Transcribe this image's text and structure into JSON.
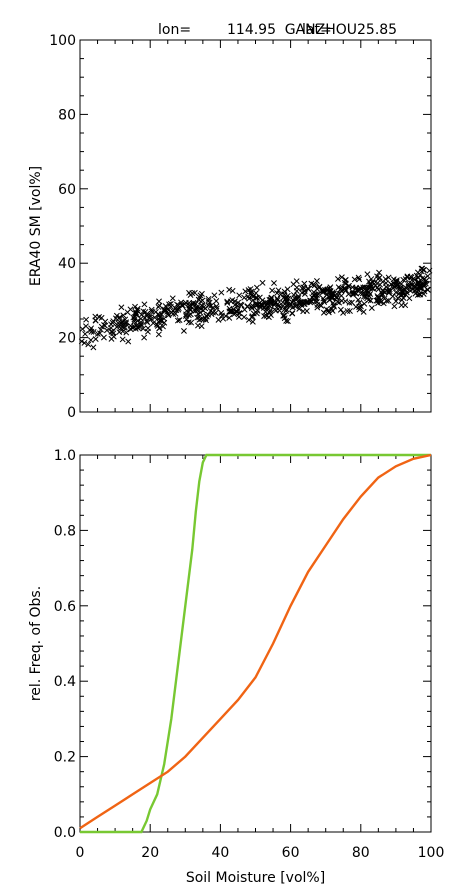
{
  "header": {
    "station": "GANZHOU",
    "lon_label": "lon=",
    "lon_value": "114.95",
    "lat_label": "lat=",
    "lat_value": "25.85"
  },
  "chart_data": [
    {
      "type": "scatter",
      "title": "",
      "xlabel": "",
      "ylabel": "ERA40 SM [vol%]",
      "xlim": [
        0,
        100
      ],
      "ylim": [
        0,
        100
      ],
      "yticks": [
        "0",
        "20",
        "40",
        "60",
        "80",
        "100"
      ],
      "marker": "x",
      "marker_color": "#000000",
      "trend_points": [
        {
          "x": 0,
          "y": 21
        },
        {
          "x": 10,
          "y": 23
        },
        {
          "x": 20,
          "y": 25
        },
        {
          "x": 30,
          "y": 27
        },
        {
          "x": 40,
          "y": 28
        },
        {
          "x": 50,
          "y": 29
        },
        {
          "x": 60,
          "y": 30
        },
        {
          "x": 70,
          "y": 31
        },
        {
          "x": 80,
          "y": 32
        },
        {
          "x": 90,
          "y": 33
        },
        {
          "x": 100,
          "y": 35
        }
      ],
      "spread": 4,
      "n_points": 700
    },
    {
      "type": "line",
      "title": "",
      "xlabel": "Soil Moisture [vol%]",
      "ylabel": "rel. Freq. of Obs.",
      "xlim": [
        0,
        100
      ],
      "ylim": [
        0,
        1
      ],
      "xticks": [
        "0",
        "20",
        "40",
        "60",
        "80",
        "100"
      ],
      "yticks": [
        "0.0",
        "0.2",
        "0.4",
        "0.6",
        "0.8",
        "1.0"
      ],
      "series": [
        {
          "color": "#78c832",
          "x": [
            0,
            17.5,
            19,
            20,
            22,
            24,
            26,
            28,
            30,
            32,
            33,
            34,
            35,
            36,
            38,
            40,
            100
          ],
          "y": [
            0,
            0,
            0.03,
            0.06,
            0.1,
            0.18,
            0.3,
            0.45,
            0.6,
            0.75,
            0.85,
            0.93,
            0.98,
            1.0,
            1.0,
            1.0,
            1.0
          ]
        },
        {
          "color": "#f06414",
          "x": [
            0,
            5,
            10,
            15,
            20,
            25,
            30,
            35,
            40,
            45,
            50,
            55,
            60,
            65,
            70,
            75,
            80,
            85,
            90,
            95,
            100
          ],
          "y": [
            0.01,
            0.04,
            0.07,
            0.1,
            0.13,
            0.16,
            0.2,
            0.25,
            0.3,
            0.35,
            0.41,
            0.5,
            0.6,
            0.69,
            0.76,
            0.83,
            0.89,
            0.94,
            0.97,
            0.99,
            1.0
          ]
        }
      ]
    }
  ]
}
